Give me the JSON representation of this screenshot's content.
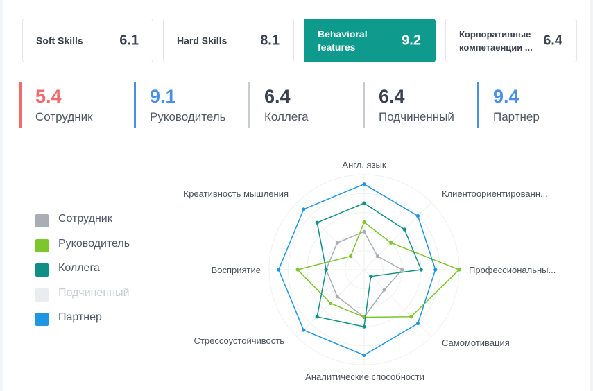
{
  "cards": [
    {
      "label": "Soft Skills",
      "value": "6.1",
      "active": false
    },
    {
      "label": "Hard Skills",
      "value": "8.1",
      "active": false
    },
    {
      "label": "Behavioral features",
      "value": "9.2",
      "active": true
    },
    {
      "label": "Корпоративные компетаенции ...",
      "value": "6.4",
      "active": false
    }
  ],
  "stats": [
    {
      "value": "5.4",
      "label": "Сотрудник",
      "color": "#f26a6a"
    },
    {
      "value": "9.1",
      "label": "Руководитель",
      "color": "#4a90e2"
    },
    {
      "value": "6.4",
      "label": "Коллега",
      "color": "#c8cbcf"
    },
    {
      "value": "6.4",
      "label": "Подчиненный",
      "color": "#c8cbcf"
    },
    {
      "value": "9.4",
      "label": "Партнер",
      "color": "#4a90e2"
    }
  ],
  "stat_value_colors": [
    "#f26a6a",
    "#4a90e2",
    "#3b4150",
    "#3b4150",
    "#4a90e2"
  ],
  "chart_data": {
    "type": "radar",
    "axes": [
      "Англ. язык",
      "Клиентоориентированн...",
      "Профессиональны...",
      "Самомотивация",
      "Аналитические способности",
      "Стрессоустойчивость",
      "Восприятие",
      "Креативность мышления"
    ],
    "rmax": 10,
    "rings": 5,
    "series": [
      {
        "name": "Сотрудник",
        "color": "#a9aeb4",
        "values": [
          4,
          2,
          4,
          3,
          5,
          4,
          4,
          4
        ],
        "visible": true
      },
      {
        "name": "Руководитель",
        "color": "#7dc62e",
        "values": [
          5,
          4,
          10,
          7,
          5,
          5,
          7,
          2
        ],
        "visible": true
      },
      {
        "name": "Коллега",
        "color": "#118f86",
        "values": [
          7,
          6,
          6,
          1,
          6,
          7,
          4,
          7
        ],
        "visible": true
      },
      {
        "name": "Подчиненный",
        "color": "#e6eaee",
        "values": [],
        "visible": false
      },
      {
        "name": "Партнер",
        "color": "#1f97e0",
        "values": [
          9,
          8,
          7.5,
          8,
          9,
          9,
          9,
          9
        ],
        "visible": true
      }
    ]
  }
}
